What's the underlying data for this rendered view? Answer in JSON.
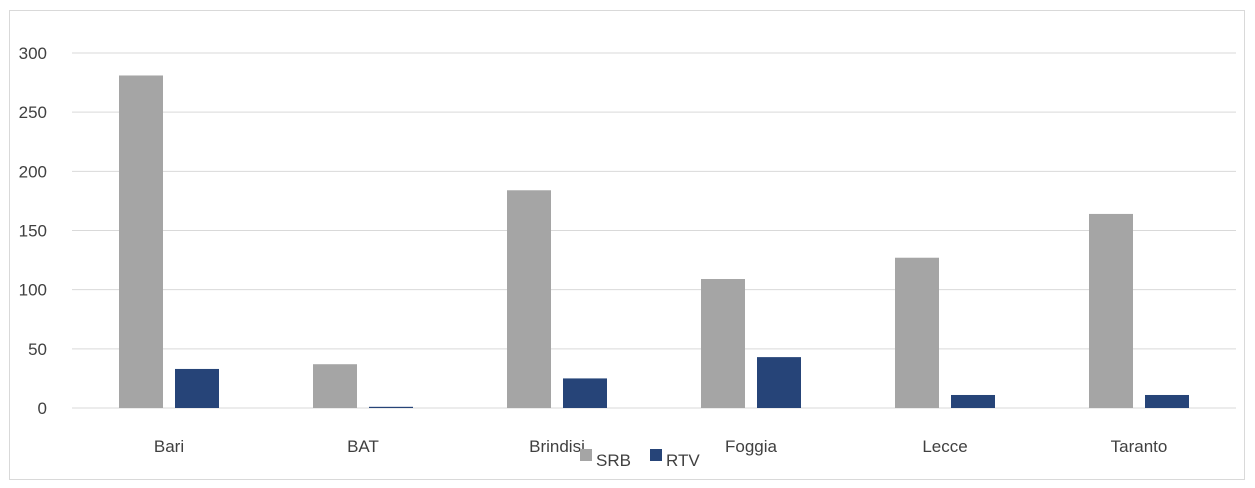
{
  "chart_data": {
    "type": "bar",
    "categories": [
      "Bari",
      "BAT",
      "Brindisi",
      "Foggia",
      "Lecce",
      "Taranto"
    ],
    "series": [
      {
        "name": "SRB",
        "values": [
          281,
          37,
          184,
          109,
          127,
          164
        ],
        "color": "#a5a5a5"
      },
      {
        "name": "RTV",
        "values": [
          33,
          1,
          25,
          43,
          11,
          11
        ],
        "color": "#264478"
      }
    ],
    "yticks": [
      0,
      50,
      100,
      150,
      200,
      250,
      300
    ],
    "ylim": [
      0,
      300
    ],
    "grid": true,
    "legend_position": "bottom",
    "title": "",
    "xlabel": "",
    "ylabel": ""
  }
}
